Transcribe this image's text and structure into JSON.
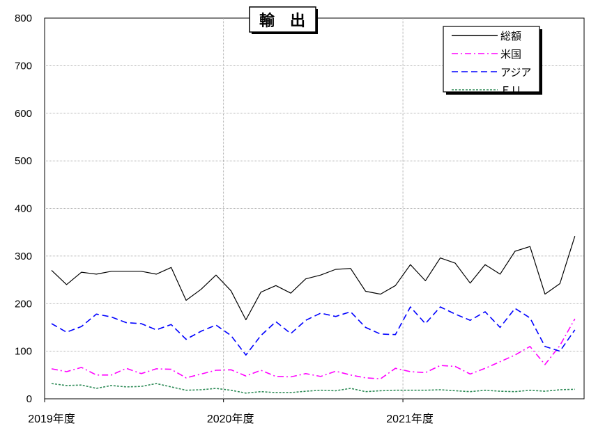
{
  "chart_data": {
    "type": "line",
    "title": "輸　出",
    "xlabel": "",
    "ylabel": "",
    "ylim": [
      0,
      800
    ],
    "yticks": [
      0,
      100,
      200,
      300,
      400,
      500,
      600,
      700,
      800
    ],
    "x_tick_labels": [
      "2019年度",
      "2020年度",
      "2021年度"
    ],
    "x_tick_indices": [
      0,
      12,
      24
    ],
    "grid": true,
    "legend_position": "top-right",
    "series": [
      {
        "name": "総額",
        "color": "#000000",
        "dash": "solid",
        "values": [
          270,
          240,
          266,
          262,
          268,
          268,
          268,
          262,
          276,
          207,
          230,
          260,
          227,
          166,
          224,
          238,
          222,
          252,
          260,
          272,
          274,
          226,
          220,
          238,
          282,
          248,
          296,
          285,
          243,
          282,
          262,
          310,
          320,
          220,
          242,
          342
        ]
      },
      {
        "name": "米国",
        "color": "#ff00ff",
        "dash": "dashdot",
        "values": [
          63,
          57,
          66,
          50,
          50,
          64,
          53,
          63,
          62,
          44,
          52,
          60,
          61,
          48,
          60,
          47,
          46,
          53,
          47,
          58,
          50,
          44,
          42,
          64,
          57,
          55,
          70,
          68,
          52,
          64,
          78,
          92,
          110,
          72,
          112,
          168
        ]
      },
      {
        "name": "アジア",
        "color": "#0000ff",
        "dash": "dashed",
        "values": [
          158,
          140,
          152,
          178,
          172,
          160,
          158,
          145,
          156,
          125,
          142,
          155,
          133,
          92,
          133,
          162,
          137,
          165,
          180,
          173,
          183,
          150,
          136,
          135,
          193,
          158,
          193,
          178,
          165,
          183,
          150,
          190,
          170,
          110,
          100,
          145
        ]
      },
      {
        "name": "ＥＵ",
        "color": "#2e8b57",
        "dash": "dotted",
        "values": [
          32,
          28,
          29,
          22,
          28,
          25,
          26,
          32,
          25,
          18,
          19,
          22,
          18,
          12,
          15,
          13,
          13,
          16,
          18,
          17,
          22,
          15,
          17,
          18,
          18,
          18,
          19,
          17,
          15,
          18,
          16,
          15,
          18,
          16,
          19,
          20
        ]
      }
    ]
  }
}
